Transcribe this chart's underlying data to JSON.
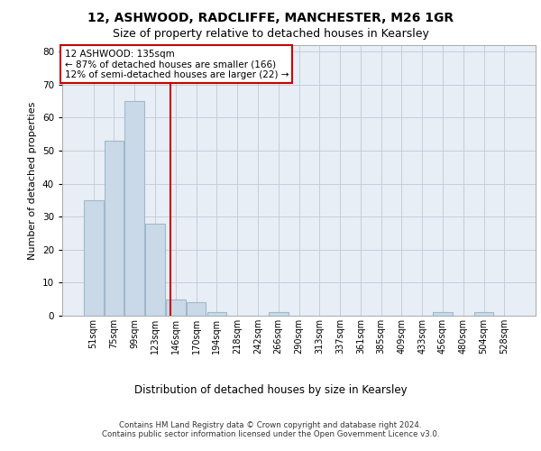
{
  "title_line1": "12, ASHWOOD, RADCLIFFE, MANCHESTER, M26 1GR",
  "title_line2": "Size of property relative to detached houses in Kearsley",
  "xlabel": "Distribution of detached houses by size in Kearsley",
  "ylabel": "Number of detached properties",
  "footer_line1": "Contains HM Land Registry data © Crown copyright and database right 2024.",
  "footer_line2": "Contains public sector information licensed under the Open Government Licence v3.0.",
  "annotation_line1": "12 ASHWOOD: 135sqm",
  "annotation_line2": "← 87% of detached houses are smaller (166)",
  "annotation_line3": "12% of semi-detached houses are larger (22) →",
  "bin_labels": [
    "51sqm",
    "75sqm",
    "99sqm",
    "123sqm",
    "146sqm",
    "170sqm",
    "194sqm",
    "218sqm",
    "242sqm",
    "266sqm",
    "290sqm",
    "313sqm",
    "337sqm",
    "361sqm",
    "385sqm",
    "409sqm",
    "433sqm",
    "456sqm",
    "480sqm",
    "504sqm",
    "528sqm"
  ],
  "bar_values": [
    35,
    53,
    65,
    28,
    5,
    4,
    1,
    0,
    0,
    1,
    0,
    0,
    0,
    0,
    0,
    0,
    0,
    1,
    0,
    1,
    0
  ],
  "bar_color": "#c9d9e8",
  "bar_edgecolor": "#a0b8cc",
  "bar_linewidth": 0.8,
  "vline_x": 3.73,
  "vline_color": "#cc0000",
  "vline_linewidth": 1.5,
  "annotation_box_color": "#cc0000",
  "grid_color": "#c0c8d8",
  "background_color": "#e8eef5",
  "ylim": [
    0,
    82
  ],
  "yticks": [
    0,
    10,
    20,
    30,
    40,
    50,
    60,
    70,
    80
  ],
  "title1_fontsize": 10,
  "title2_fontsize": 9,
  "footer_fontsize": 6.2,
  "ylabel_fontsize": 8,
  "xlabel_fontsize": 8.5,
  "tick_fontsize": 7,
  "annotation_fontsize": 7.5
}
